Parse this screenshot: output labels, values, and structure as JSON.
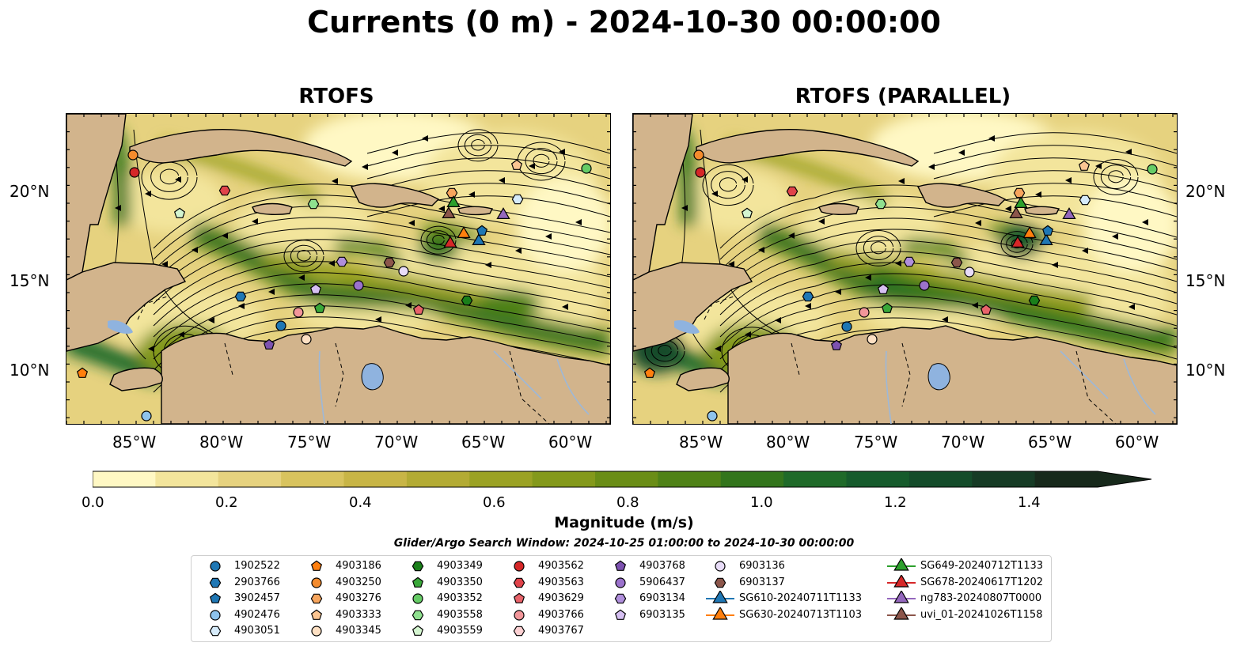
{
  "title": "Currents (0 m) - 2024-10-30 00:00:00",
  "panels": [
    {
      "title": "RTOFS"
    },
    {
      "title": "RTOFS (PARALLEL)"
    }
  ],
  "axes": {
    "lat_labels": [
      "20°N",
      "15°N",
      "10°N"
    ],
    "lon_labels": [
      "85°W",
      "80°W",
      "75°W",
      "70°W",
      "65°W",
      "60°W"
    ]
  },
  "colorbar": {
    "label": "Magnitude (m/s)",
    "ticks": [
      "0.0",
      "0.2",
      "0.4",
      "0.6",
      "0.8",
      "1.0",
      "1.2",
      "1.4"
    ],
    "range": [
      0,
      1.6
    ],
    "extend": "max",
    "colors": [
      "#fff8c4",
      "#f3e59c",
      "#e6d27f",
      "#d8c35e",
      "#c8b546",
      "#b3ab34",
      "#9ba224",
      "#84991b",
      "#6a8d16",
      "#4f8217",
      "#33751c",
      "#1f6a29",
      "#165b2c",
      "#144c2a",
      "#163b25",
      "#17291b"
    ]
  },
  "search_window": "Glider/Argo Search Window: 2024-10-25 01:00:00 to 2024-10-30 00:00:00",
  "legend": [
    {
      "label": "1902522",
      "marker": "circle",
      "color": "#1f77b4"
    },
    {
      "label": "2903766",
      "marker": "hexagon",
      "color": "#1f77b4"
    },
    {
      "label": "3902457",
      "marker": "pentagon",
      "color": "#1f77b4"
    },
    {
      "label": "4902476",
      "marker": "circle",
      "color": "#8ec3ec"
    },
    {
      "label": "4903051",
      "marker": "hexagon",
      "color": "#d6ebfa"
    },
    {
      "label": "4903186",
      "marker": "pentagon",
      "color": "#ff7f0e"
    },
    {
      "label": "4903250",
      "marker": "circle",
      "color": "#f48b2d"
    },
    {
      "label": "4903276",
      "marker": "hexagon",
      "color": "#f7a55d"
    },
    {
      "label": "4903333",
      "marker": "pentagon",
      "color": "#fbc592"
    },
    {
      "label": "4903345",
      "marker": "circle",
      "color": "#fde0c3"
    },
    {
      "label": "4903349",
      "marker": "hexagon",
      "color": "#1a7f1a"
    },
    {
      "label": "4903350",
      "marker": "pentagon",
      "color": "#39a839"
    },
    {
      "label": "4903352",
      "marker": "circle",
      "color": "#66cc66"
    },
    {
      "label": "4903558",
      "marker": "hexagon",
      "color": "#8fe08f"
    },
    {
      "label": "4903559",
      "marker": "pentagon",
      "color": "#d4f5d0"
    },
    {
      "label": "4903562",
      "marker": "circle",
      "color": "#d62728"
    },
    {
      "label": "4903563",
      "marker": "hexagon",
      "color": "#e0434a"
    },
    {
      "label": "4903629",
      "marker": "pentagon",
      "color": "#e8636a"
    },
    {
      "label": "4903766",
      "marker": "circle",
      "color": "#f2969a"
    },
    {
      "label": "4903767",
      "marker": "hexagon",
      "color": "#fbd0d2"
    },
    {
      "label": "4903768",
      "marker": "pentagon",
      "color": "#7d52b0"
    },
    {
      "label": "5906437",
      "marker": "circle",
      "color": "#9b72cc"
    },
    {
      "label": "6903134",
      "marker": "hexagon",
      "color": "#b08fdc"
    },
    {
      "label": "6903135",
      "marker": "pentagon",
      "color": "#d6c0f2"
    },
    {
      "label": "6903136",
      "marker": "circle",
      "color": "#e8dcf8"
    },
    {
      "label": "6903137",
      "marker": "hexagon",
      "color": "#8c564b"
    },
    {
      "label": "SG610-20240711T1133",
      "marker": "triangle",
      "color": "#1f77b4"
    },
    {
      "label": "SG630-20240713T1103",
      "marker": "triangle",
      "color": "#ff7f0e"
    },
    {
      "label": "SG649-20240712T1133",
      "marker": "triangle",
      "color": "#2ca02c"
    },
    {
      "label": "SG678-20240617T1202",
      "marker": "triangle",
      "color": "#d62728"
    },
    {
      "label": "ng783-20240807T0000",
      "marker": "triangle",
      "color": "#9467bd"
    },
    {
      "label": "uvi_01-20241026T1158",
      "marker": "triangle",
      "color": "#8c564b"
    }
  ],
  "map_colors": {
    "land": "#d2b48c",
    "lake": "#8fb3df",
    "river": "#9db8d8",
    "streamline": "#000000"
  }
}
